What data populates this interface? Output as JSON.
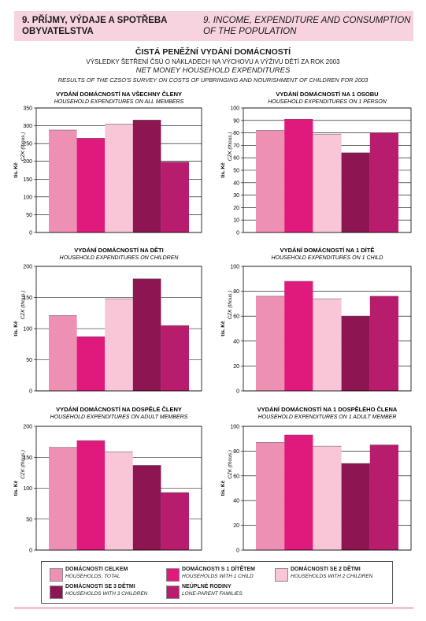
{
  "header": {
    "cz": [
      "9. PŘÍJMY, VÝDAJE A SPOTŘEBA",
      "OBYVATELSTVA"
    ],
    "en": [
      "9. INCOME, EXPENDITURE AND CONSUMPTION",
      "OF THE POPULATION"
    ]
  },
  "titles": {
    "main": "ČISTÁ PENĚŽNÍ VYDÁNÍ DOMÁCNOSTÍ",
    "sub_cz": "VÝSLEDKY ŠETŘENÍ ČSÚ O NÁKLADECH NA VÝCHOVU A VÝŽIVU DĚTÍ ZA ROK 2003",
    "main_en": "NET MONEY HOUSEHOLD EXPENDITURES",
    "sub_en": "RESULTS OF THE CZSO'S SURVEY ON COSTS OF UPBRINGING AND NOURISHMENT OF CHILDREN FOR 2003"
  },
  "colors": {
    "bars": [
      "#ee8fb4",
      "#e0197d",
      "#f9c6d8",
      "#8c1552",
      "#b81c6c"
    ],
    "grid": "#000000"
  },
  "legend": [
    {
      "cz": "DOMÁCNOSTI CELKEM",
      "en": "HOUSEHOLDS, TOTAL"
    },
    {
      "cz": "DOMÁCNOSTI S 1 DÍTĚTEM",
      "en": "HOUSEHOLDS WITH 1 CHILD"
    },
    {
      "cz": "DOMÁCNOSTI SE 2 DĚTMI",
      "en": "HOUSEHOLDS WITH 2 CHILDREN"
    },
    {
      "cz": "DOMÁCNOSTI SE 3 DĚTMI",
      "en": "HOUSEHOLDS WITH 3 CHILDREN"
    },
    {
      "cz": "NEÚPLNÉ RODINY",
      "en": "LONE-PARENT FAMILIES"
    }
  ],
  "chart_data": [
    {
      "type": "bar",
      "title": "VYDÁNÍ DOMÁCNOSTÍ NA VŠECHNY ČLENY",
      "subtitle": "HOUSEHOLD EXPENDITURES ON ALL MEMBERS",
      "ylabel_cz": "tis. Kč",
      "ylabel_en": "CZK (thous.)",
      "ylim": [
        0,
        350
      ],
      "step": 50,
      "ticks": [
        "0",
        "50",
        "100",
        "150",
        "200",
        "250",
        "300",
        "350"
      ],
      "values": [
        288,
        265,
        305,
        316,
        198
      ]
    },
    {
      "type": "bar",
      "title": "VYDÁNÍ DOMÁCNOSTÍ NA 1 OSOBU",
      "subtitle": "HOUSEHOLD EXPENDITURES ON 1 PERSON",
      "ylabel_cz": "tis. Kč",
      "ylabel_en": "CZK (thous.)",
      "ylim": [
        0,
        100
      ],
      "step": 10,
      "ticks": [
        "0",
        "10",
        "20",
        "30",
        "40",
        "50",
        "60",
        "70",
        "80",
        "90",
        "100"
      ],
      "values": [
        82,
        91,
        79,
        64,
        80
      ]
    },
    {
      "type": "bar",
      "title": "VYDÁNÍ DOMÁCNOSTÍ NA DĚTI",
      "subtitle": "HOUSEHOLD EXPENDITURES ON CHILDREN",
      "ylabel_cz": "tis. Kč",
      "ylabel_en": "CZK (thous.)",
      "ylim": [
        0,
        200
      ],
      "step": 50,
      "ticks": [
        "0",
        "50",
        "100",
        "150",
        "200"
      ],
      "values": [
        121,
        87,
        148,
        180,
        105
      ]
    },
    {
      "type": "bar",
      "title": "VYDÁNÍ DOMÁCNOSTÍ NA 1 DÍTĚ",
      "subtitle": "HOUSEHOLD EXPENDITURES ON 1 CHILD",
      "ylabel_cz": "tis. Kč",
      "ylabel_en": "CZK (thous.)",
      "ylim": [
        0,
        100
      ],
      "step": 20,
      "ticks": [
        "0",
        "20",
        "40",
        "60",
        "80",
        "100"
      ],
      "values": [
        76,
        88,
        74,
        60,
        76
      ]
    },
    {
      "type": "bar",
      "title": "VYDÁNÍ DOMÁCNOSTÍ NA DOSPĚLÉ ČLENY",
      "subtitle": "HOUSEHOLD EXPENDITURES ON ADULT MEMBERS",
      "ylabel_cz": "tis. Kč",
      "ylabel_en": "CZK (thous.)",
      "ylim": [
        0,
        200
      ],
      "step": 50,
      "ticks": [
        "0",
        "50",
        "100",
        "150",
        "200"
      ],
      "values": [
        166,
        177,
        159,
        137,
        93
      ]
    },
    {
      "type": "bar",
      "title": "VYDÁNÍ DOMÁCNOSTÍ NA 1 DOSPĚLÉHO ČLENA",
      "subtitle": "HOUSEHOLD EXPENDITURES ON 1 ADULT MEMBER",
      "ylabel_cz": "tis. Kč",
      "ylabel_en": "CZK (thous.)",
      "ylim": [
        0,
        100
      ],
      "step": 20,
      "ticks": [
        "0",
        "20",
        "40",
        "60",
        "80",
        "100"
      ],
      "values": [
        87,
        93,
        84,
        70,
        85
      ]
    }
  ]
}
